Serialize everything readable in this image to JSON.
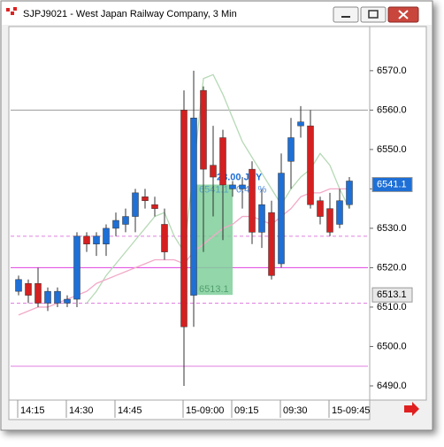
{
  "window_title": "SJPJ9021 - West Japan Railway Company, 3 Min",
  "chart_data": {
    "type": "candlestick",
    "categories": [
      "14:15",
      null,
      null,
      null,
      null,
      "14:30",
      null,
      null,
      null,
      null,
      "14:45",
      null,
      null,
      null,
      null,
      null,
      null,
      "15-09:00",
      null,
      null,
      null,
      null,
      "09:15",
      null,
      null,
      null,
      null,
      "09:30",
      null,
      null,
      null,
      null,
      "15-09:45",
      null,
      null
    ],
    "open": [
      6514,
      6516,
      6516,
      6511,
      6511,
      6511,
      6512,
      6528,
      6526,
      6526,
      6530,
      6531,
      6533,
      6538,
      6536,
      6531,
      null,
      6560,
      6513,
      6565,
      6546,
      6553,
      6540,
      6540,
      6545,
      6529,
      6534,
      6521,
      6547,
      6556,
      6556,
      6537,
      6535,
      6531,
      6536
    ],
    "high": [
      6518,
      6517,
      6520,
      6515,
      6515,
      6513,
      6529,
      6529,
      6529,
      6531,
      6534,
      6535,
      6540,
      6540,
      6538,
      6535,
      null,
      6565,
      6570,
      6566,
      6556,
      6555,
      6542,
      6543,
      6547,
      6540,
      6537,
      6549,
      6558,
      6561,
      6560,
      6538,
      6539,
      6540,
      6543
    ],
    "low": [
      6513,
      6511,
      6510,
      6509,
      6510,
      6510,
      6510,
      6524,
      6523,
      6523,
      6528,
      6529,
      6529,
      6535,
      6533,
      6522,
      null,
      6490,
      6505,
      6524,
      6533,
      6527,
      6538,
      6535,
      6526,
      6525,
      6517,
      6520,
      6540,
      6553,
      6535,
      6531,
      6528,
      6530,
      6535
    ],
    "close": [
      6517,
      6513,
      6511,
      6514,
      6514,
      6512,
      6528,
      6526,
      6528,
      6530,
      6532,
      6533,
      6539,
      6537,
      6535,
      6524,
      null,
      6505,
      6558,
      6545,
      6543,
      6541,
      6541,
      6541,
      6529,
      6536,
      6518,
      6544,
      6553,
      6557,
      6536,
      6533,
      6529,
      6537,
      6542
    ],
    "up_color": "#1e6fd6",
    "down_color": "#d42020",
    "series": [
      {
        "color": "#b5d9b5",
        "values": [
          null,
          null,
          null,
          null,
          null,
          null,
          null,
          6511,
          6514,
          6518,
          6521,
          6524,
          6527,
          6530,
          6533,
          6534,
          6528,
          6524,
          6545,
          6568,
          6569,
          6564,
          6558,
          6552,
          6548,
          6544,
          6540,
          6536,
          6540,
          6543,
          6545,
          6549,
          6546,
          6540,
          6535
        ]
      },
      {
        "color": "#f2a9c8",
        "values": [
          6508,
          6509,
          6510,
          6510,
          6511,
          6512,
          6513,
          6514,
          6516,
          6517,
          6518,
          6519,
          6520,
          6521,
          6522,
          6522,
          6522,
          6521,
          6524,
          6526,
          6528,
          6530,
          6531,
          6533,
          6533,
          6532,
          6531,
          6533,
          6535,
          6538,
          6539,
          6539,
          6540,
          6540,
          6540
        ]
      }
    ],
    "hlines": [
      {
        "value": 6560,
        "color": "#999999",
        "dashed": false
      },
      {
        "value": 6528,
        "color": "#e080e0",
        "dashed": true
      },
      {
        "value": 6520,
        "color": "#e040e0",
        "dashed": false
      },
      {
        "value": 6511,
        "color": "#e080e0",
        "dashed": true
      },
      {
        "value": 6495,
        "color": "#e080e0",
        "dashed": false
      }
    ],
    "price_labels": [
      {
        "value": 6541.1,
        "color": "#1e6fd6"
      },
      {
        "value": 6513.1,
        "color": "#e8e8e8"
      }
    ],
    "measurement": {
      "from": 6513.1,
      "to": 6541.1,
      "change": {
        "value": 28,
        "label": "28.00 JPY"
      },
      "percent": {
        "value": 0.43,
        "label": "0.43 %"
      }
    },
    "ylim": [
      6486.4,
      6581.2
    ],
    "yticks": [
      {
        "value": 6490,
        "label": "6490.0"
      },
      {
        "value": 6500,
        "label": "6500.0"
      },
      {
        "value": 6510,
        "label": "6510.0"
      },
      {
        "value": 6520,
        "label": "6520.0"
      },
      {
        "value": 6530,
        "label": "6530.0"
      },
      {
        "value": 6540,
        "label": "6540.0"
      },
      {
        "value": 6550,
        "label": "6550.0"
      },
      {
        "value": 6560,
        "label": "6560.0"
      },
      {
        "value": 6570,
        "label": "6570.0"
      }
    ]
  }
}
